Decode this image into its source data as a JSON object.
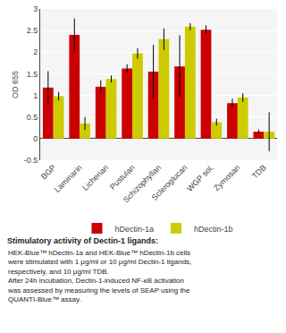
{
  "chart_data": {
    "type": "bar",
    "categories": [
      "BGP",
      "Laminarin",
      "Lichenan",
      "Pustulan",
      "Schizophyllan",
      "Scleroglucan",
      "WGP sol.",
      "Zymosan",
      "TDB"
    ],
    "series": [
      {
        "name": "hDectin-1a",
        "color": "#CC0000",
        "values": [
          1.18,
          2.4,
          1.2,
          1.62,
          1.55,
          1.67,
          2.52,
          0.82,
          0.16
        ],
        "error": [
          0.38,
          0.38,
          0.15,
          0.1,
          0.62,
          0.72,
          0.1,
          0.1,
          0.05
        ]
      },
      {
        "name": "hDectin-1b",
        "color": "#CCCC00",
        "values": [
          0.98,
          0.35,
          1.38,
          1.97,
          2.3,
          2.59,
          0.38,
          0.95,
          0.16
        ],
        "error": [
          0.1,
          0.15,
          0.08,
          0.12,
          0.25,
          0.08,
          0.08,
          0.1,
          0.45
        ]
      }
    ],
    "ylabel": "OD 655",
    "ylim": [
      -0.5,
      3
    ],
    "yticks": [
      -0.5,
      0,
      0.5,
      1.0,
      1.5,
      2.0,
      2.5,
      3.0
    ],
    "grid": true,
    "legend": "bottom",
    "annotations": [
      "Stimulatory activity of Dectin-1 ligands:",
      "HEK-Blue™ hDectin-1a and HEK-Blue™ hDectin-1b cells\nwere stimulated with 1 μg/ml or 10 μg/ml Dectin-1 ligands,\nrespectively, and 10 μg/ml TDB.\nAfter 24h incubation, Dectin-1-induced NF-κB activation\nwas assessed by measuring the levels of SEAP using the\nQUANTI-Blue™ assay."
    ]
  }
}
